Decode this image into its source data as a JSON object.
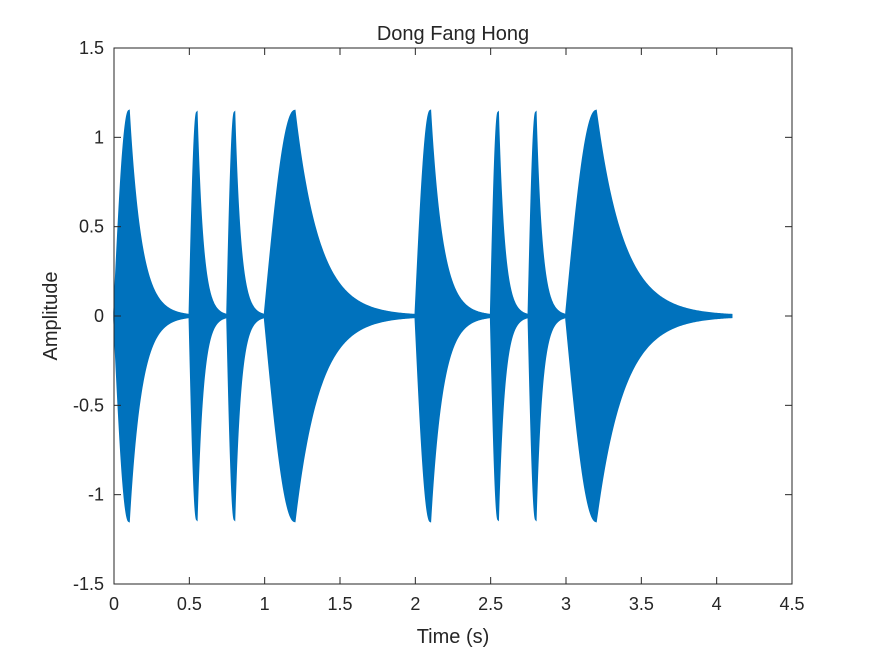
{
  "chart_data": {
    "type": "area",
    "title": "Dong Fang Hong",
    "xlabel": "Time (s)",
    "ylabel": "Amplitude",
    "xlim": [
      0,
      4.5
    ],
    "ylim": [
      -1.5,
      1.5
    ],
    "x_ticks": [
      0,
      0.5,
      1,
      1.5,
      2,
      2.5,
      3,
      3.5,
      4,
      4.5
    ],
    "y_ticks": [
      -1.5,
      -1,
      -0.5,
      0,
      0.5,
      1,
      1.5
    ],
    "x_tick_labels": [
      "0",
      "0.5",
      "1",
      "1.5",
      "2",
      "2.5",
      "3",
      "3.5",
      "4",
      "4.5"
    ],
    "y_tick_labels": [
      "-1.5",
      "-1",
      "-0.5",
      "0",
      "0.5",
      "1",
      "1.5"
    ],
    "grid": false,
    "series_color": "#0072BD",
    "notes": [
      {
        "start": 0.0,
        "end": 0.5,
        "peak_time": 0.1,
        "peak_amplitude": 1.15
      },
      {
        "start": 0.5,
        "end": 0.75,
        "peak_time": 0.55,
        "peak_amplitude": 1.14
      },
      {
        "start": 0.75,
        "end": 1.0,
        "peak_time": 0.8,
        "peak_amplitude": 1.14
      },
      {
        "start": 1.0,
        "end": 2.0,
        "peak_time": 1.2,
        "peak_amplitude": 1.15
      },
      {
        "start": 2.0,
        "end": 2.5,
        "peak_time": 2.1,
        "peak_amplitude": 1.15
      },
      {
        "start": 2.5,
        "end": 2.75,
        "peak_time": 2.55,
        "peak_amplitude": 1.14
      },
      {
        "start": 2.75,
        "end": 3.0,
        "peak_time": 2.8,
        "peak_amplitude": 1.14
      },
      {
        "start": 3.0,
        "end": 4.1,
        "peak_time": 3.2,
        "peak_amplitude": 1.15
      }
    ]
  }
}
